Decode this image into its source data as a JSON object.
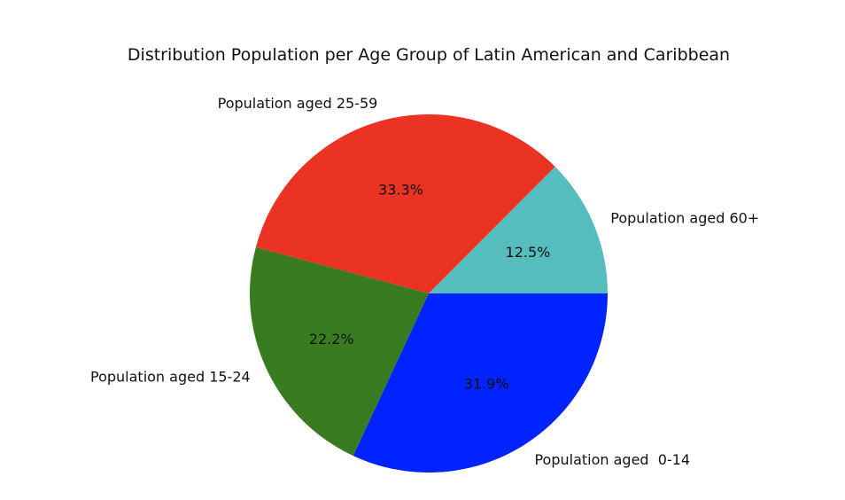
{
  "chart_data": {
    "type": "pie",
    "title": "Distribution Population per Age Group of Latin American and Caribbean",
    "start_angle_deg": 0,
    "direction": "counterclockwise",
    "slices": [
      {
        "label": "Population aged 60+",
        "value": 12.5,
        "pct_label": "12.5%",
        "color": "#56bdbf"
      },
      {
        "label": "Population aged 25-59",
        "value": 33.3,
        "pct_label": "33.3%",
        "color": "#ea3323"
      },
      {
        "label": "Population aged 15-24",
        "value": 22.2,
        "pct_label": "22.2%",
        "color": "#387b21"
      },
      {
        "label": "Population aged  0-14",
        "value": 31.9,
        "pct_label": "31.9%",
        "color": "#0023ff"
      }
    ]
  }
}
